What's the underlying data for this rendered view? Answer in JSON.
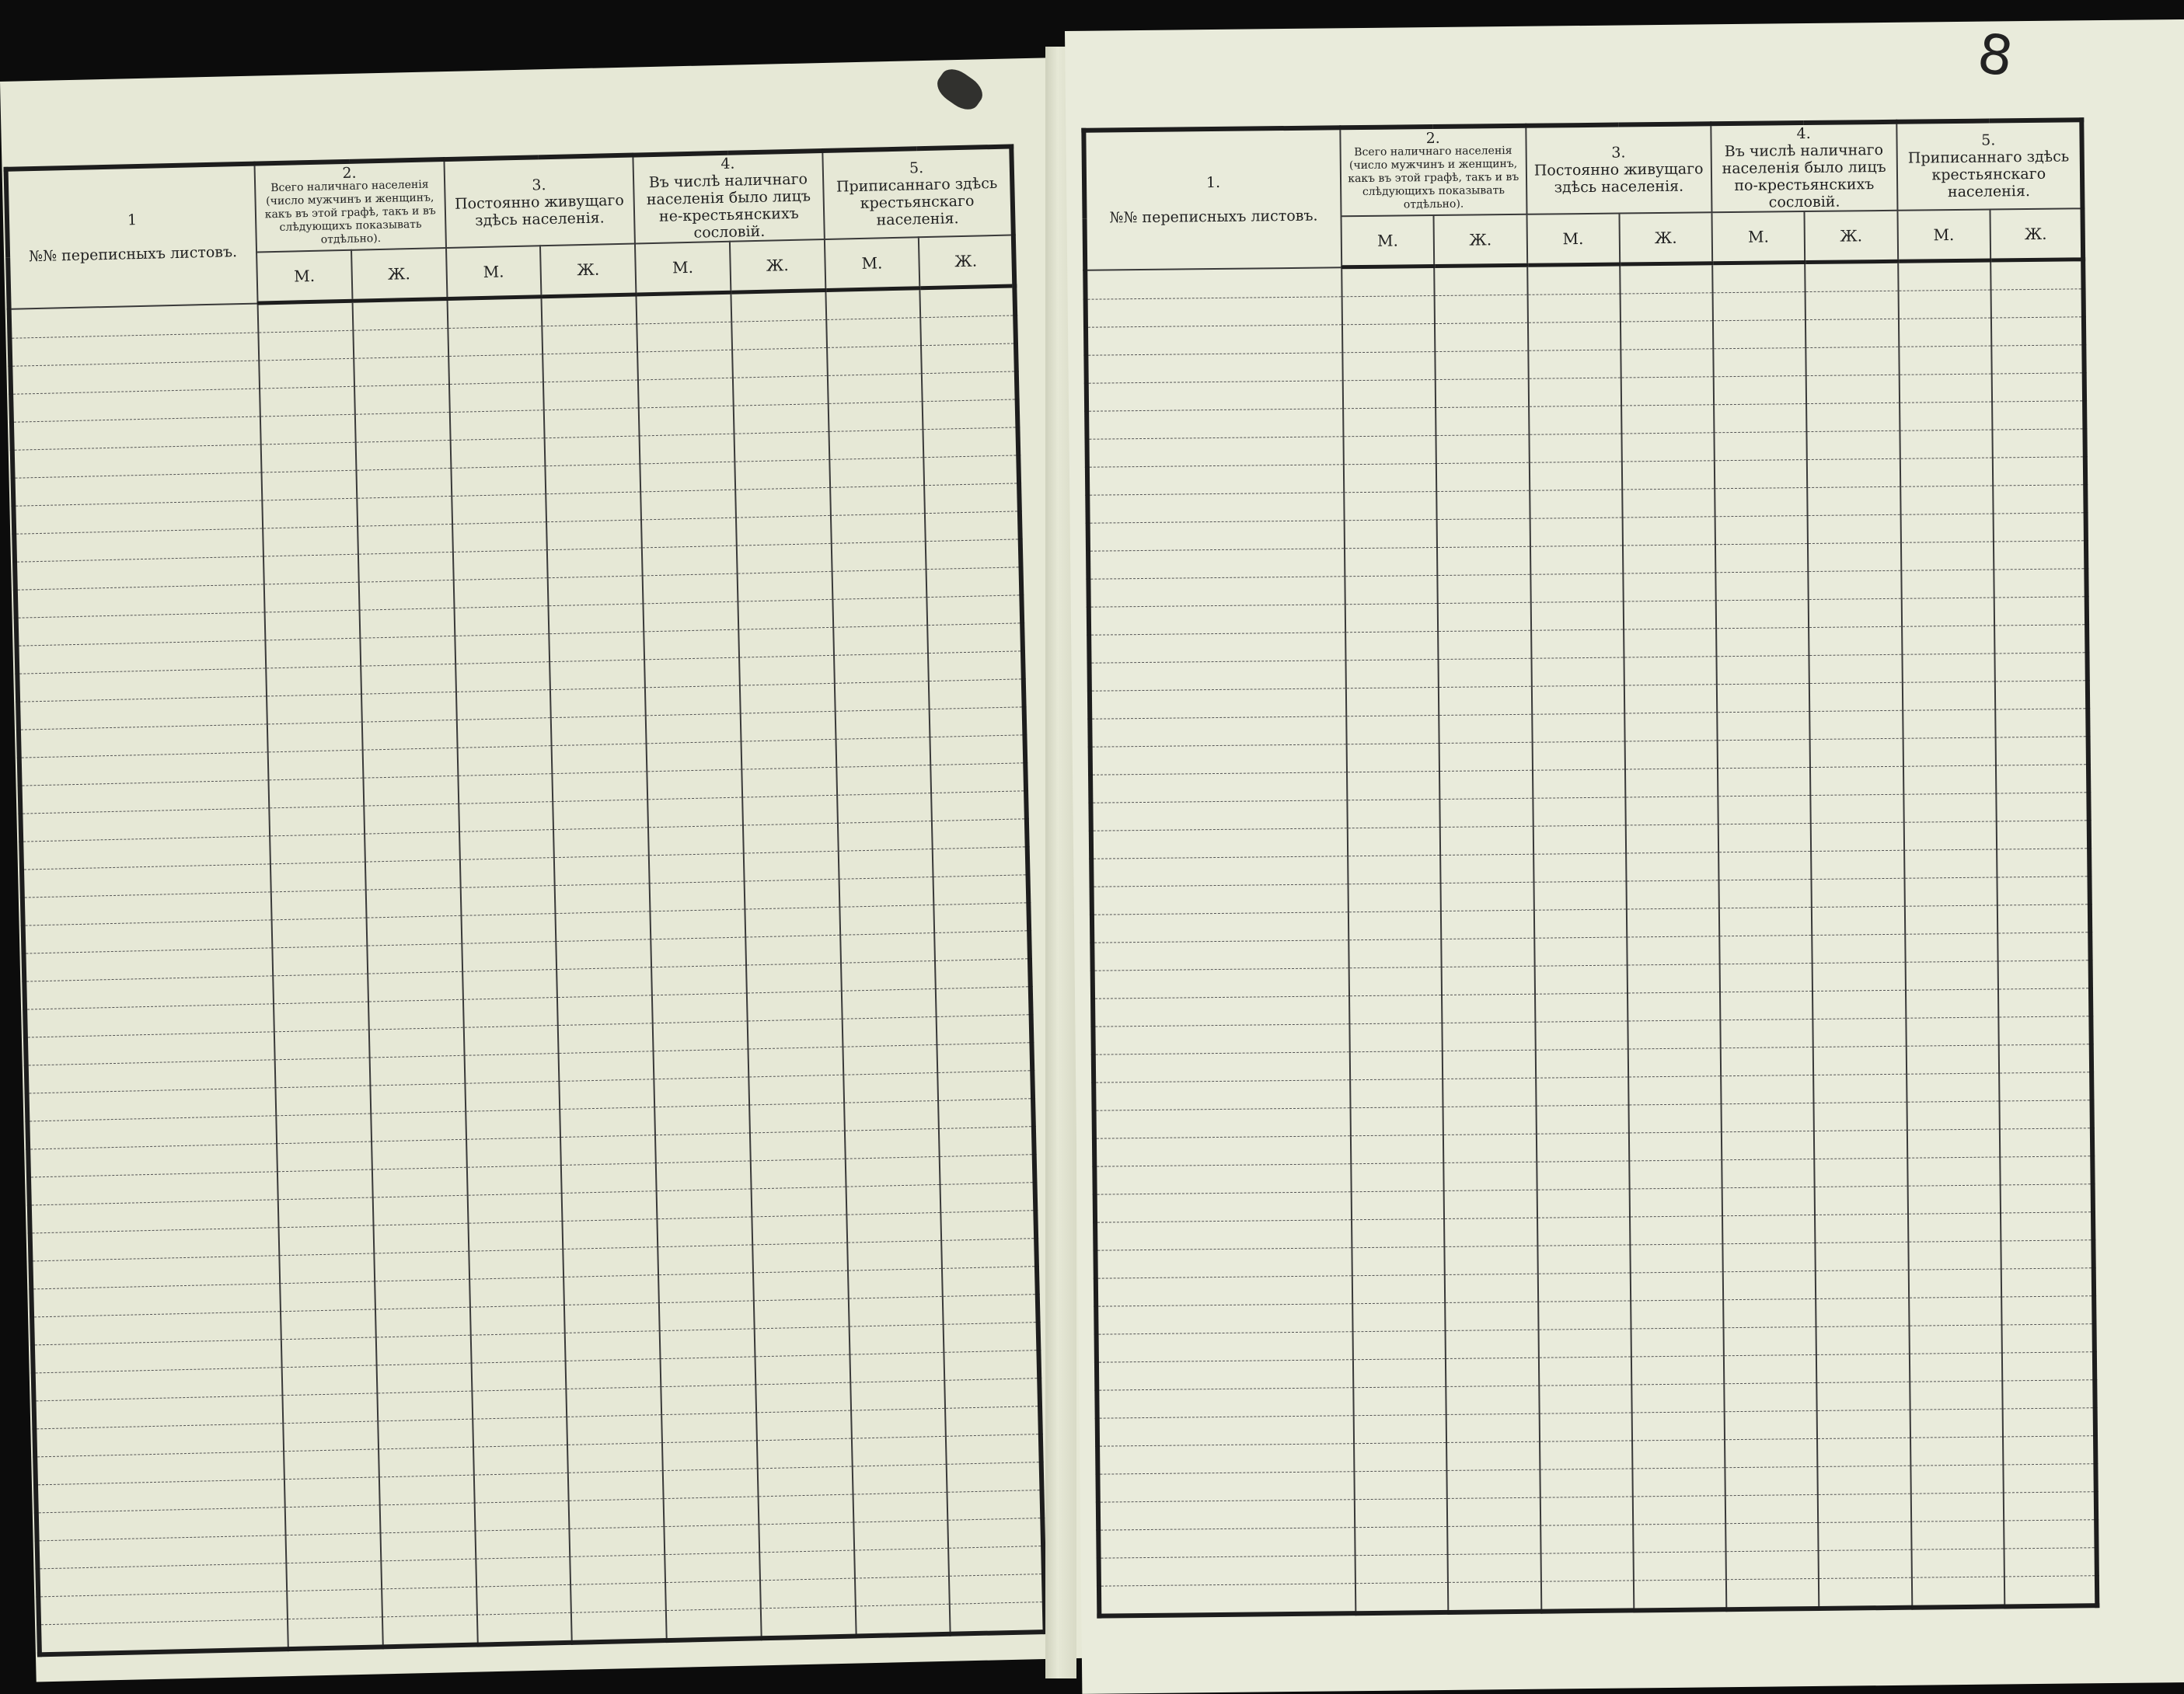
{
  "page_number": "8",
  "form": {
    "col1_num_left": "1",
    "col1_num_right": "1.",
    "col1_label": "№№ переписныхъ листовъ.",
    "col2_num": "2.",
    "col2_label": "Всего наличнаго населенія (число мужчинъ и женщинъ, какъ въ этой графѣ, такъ и въ слѣдующихъ показывать отдѣльно).",
    "col3_num": "3.",
    "col3_label": "Постоянно живущаго здѣсь населенія.",
    "col4_num": "4.",
    "col4_label_left": "Въ числѣ наличнаго населенія было лицъ не-крестьянскихъ сословій.",
    "col4_label_right": "Въ числѣ наличнаго населенія было лицъ по-крестьянскихъ сословій.",
    "col5_num": "5.",
    "col5_label": "Приписаннаго здѣсь крестьянскаго населенія.",
    "male": "М.",
    "female": "Ж."
  }
}
